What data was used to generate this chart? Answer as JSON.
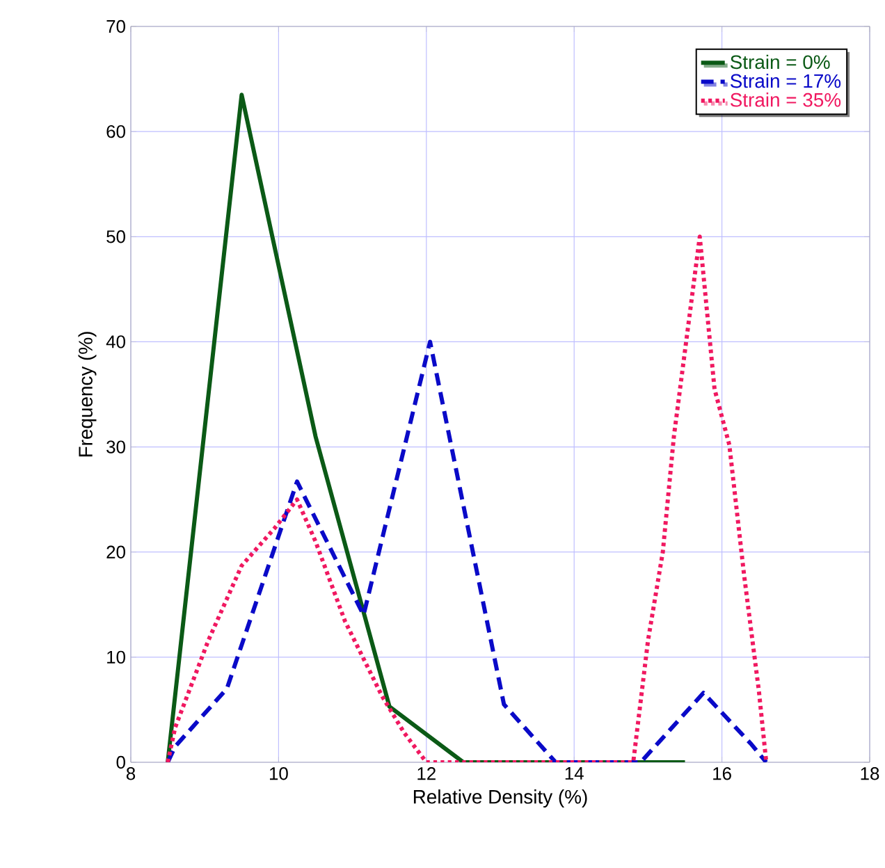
{
  "chart_data": {
    "type": "line",
    "xlabel": "Relative Density (%)",
    "ylabel": "Frequency (%)",
    "xlim": [
      8,
      18
    ],
    "xticks": [
      8,
      10,
      12,
      14,
      16,
      18
    ],
    "ylim": [
      0,
      70
    ],
    "yticks": [
      0,
      10,
      20,
      30,
      40,
      50,
      60,
      70
    ],
    "grid": true,
    "legend": "top right",
    "marker": "none",
    "series": [
      {
        "name": "Strain = 0%",
        "color": "#0b5a16",
        "line_style": "solid",
        "x": [
          8.5,
          9.5,
          10.5,
          11.5,
          12.5,
          13.5,
          14.5,
          15.5
        ],
        "values": [
          0,
          63.5,
          31,
          5.3,
          0,
          0,
          0,
          0
        ]
      },
      {
        "name": "Strain = 17%",
        "color": "#0a0ac8",
        "line_style": "dashed",
        "x": [
          8.5,
          8.6,
          9.3,
          10.25,
          11.15,
          12.05,
          13.05,
          13.75,
          14.9,
          15.75,
          16.4,
          16.6
        ],
        "values": [
          0,
          1.5,
          7,
          26.7,
          14,
          40,
          5.5,
          0,
          0,
          6.6,
          1.7,
          0
        ]
      },
      {
        "name": "Strain = 35%",
        "color": "#f01860",
        "line_style": "dotted",
        "x": [
          8.5,
          8.6,
          9.05,
          9.5,
          9.95,
          10.25,
          10.5,
          10.9,
          11.4,
          11.7,
          12.0,
          14.8,
          15.0,
          15.2,
          15.35,
          15.7,
          15.9,
          16.1,
          16.3,
          16.5,
          16.6
        ],
        "values": [
          0,
          3.3,
          11.6,
          18.7,
          22.3,
          25,
          21,
          13.4,
          6.3,
          2.8,
          0,
          0,
          11.6,
          20,
          31,
          50,
          35.5,
          30.2,
          17.8,
          6.8,
          0
        ]
      }
    ]
  }
}
